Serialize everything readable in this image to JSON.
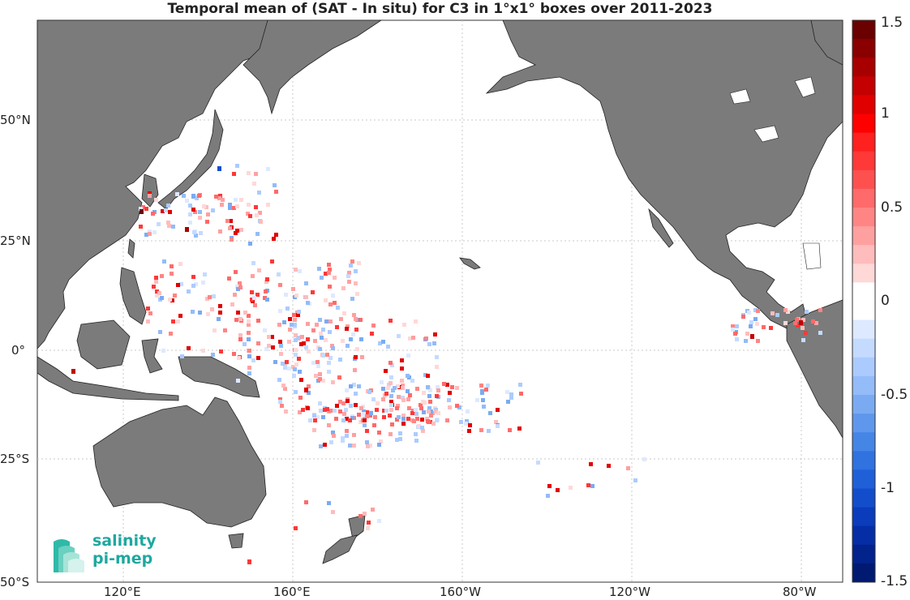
{
  "title": "Temporal mean of (SAT - In situ) for C3 in 1°x1° boxes over 2011-2023",
  "lat_labels": [
    "50°N",
    "25°N",
    "0°",
    "25°S",
    "50°S"
  ],
  "lon_labels": [
    "120°E",
    "160°E",
    "160°W",
    "120°W",
    "80°W"
  ],
  "colorbar": {
    "ticks": [
      "1.5",
      "1",
      "0.5",
      "0",
      "-0.5",
      "-1",
      "-1.5"
    ],
    "range": [
      -1.5,
      1.5
    ],
    "colors_top_to_bottom": [
      "#6b0000",
      "#8a0000",
      "#a80000",
      "#c40000",
      "#e00000",
      "#ff0000",
      "#ff2020",
      "#ff3838",
      "#ff5050",
      "#ff6a6a",
      "#ff8585",
      "#ffa0a0",
      "#ffbcbc",
      "#ffd8d8",
      "#ffffff",
      "#ffffff",
      "#dde9ff",
      "#c4dbff",
      "#abcbff",
      "#93bcf8",
      "#7aabf2",
      "#5f97ec",
      "#4585e6",
      "#2f72e0",
      "#1f5fd8",
      "#134dcc",
      "#0a3cbc",
      "#052ea6",
      "#02228c",
      "#001a72"
    ]
  },
  "logo": {
    "line1": "salinity",
    "line2": "pi-mep"
  },
  "colors": {
    "land": "#7b7b7b",
    "ocean": "#ffffff",
    "grid": "#bbbbbb"
  }
}
